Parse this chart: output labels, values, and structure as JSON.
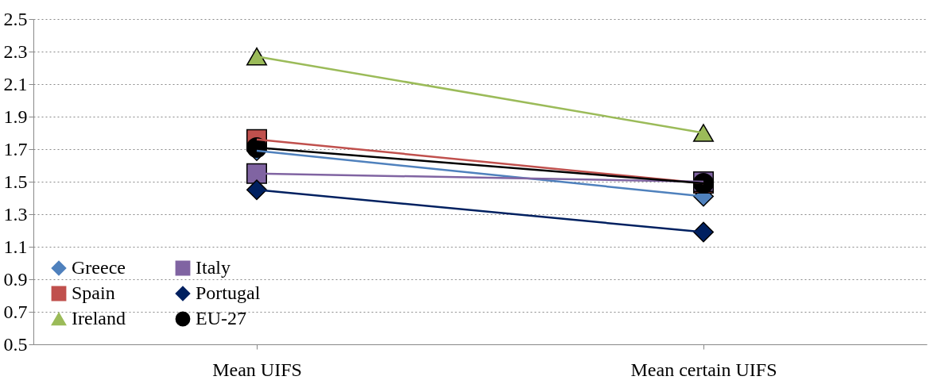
{
  "chart_data": {
    "type": "line",
    "categories": [
      "Mean UIFS",
      "Mean certain UIFS"
    ],
    "series": [
      {
        "name": "Greece",
        "color": "#4f81bd",
        "marker": "diamond",
        "values": [
          1.69,
          1.41
        ]
      },
      {
        "name": "Spain",
        "color": "#c0504d",
        "marker": "square",
        "values": [
          1.76,
          1.49
        ]
      },
      {
        "name": "Ireland",
        "color": "#9bbb59",
        "marker": "triangle",
        "values": [
          2.27,
          1.8
        ]
      },
      {
        "name": "Italy",
        "color": "#8064a2",
        "marker": "square",
        "values": [
          1.55,
          1.5
        ]
      },
      {
        "name": "Portugal",
        "color": "#002060",
        "marker": "diamond",
        "values": [
          1.45,
          1.19
        ]
      },
      {
        "name": "EU-27",
        "color": "#000000",
        "marker": "circle",
        "values": [
          1.71,
          1.49
        ]
      }
    ],
    "ylim": [
      0.5,
      2.5
    ],
    "yticks": [
      0.5,
      0.7,
      0.9,
      1.1,
      1.3,
      1.5,
      1.7,
      1.9,
      2.1,
      2.3,
      2.5
    ],
    "grid": "y",
    "legend": "bottom left"
  }
}
